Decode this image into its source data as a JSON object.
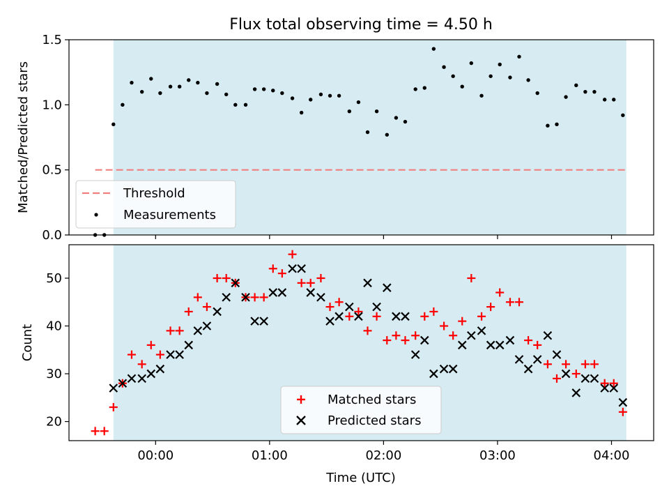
{
  "chart_data": [
    {
      "type": "scatter",
      "title": "Flux total observing time = 4.50 h",
      "xlabel": "",
      "ylabel": "Matched/Predicted stars",
      "ylim": [
        0,
        1.5
      ],
      "xlim": [
        -0.76,
        4.37
      ],
      "yticks": [
        0.0,
        0.5,
        1.0,
        1.5
      ],
      "ytick_labels": [
        "0.0",
        "0.5",
        "1.0",
        "1.5"
      ],
      "shaded_span": [
        -0.37,
        4.13
      ],
      "shade_color": "#add8e6",
      "threshold": {
        "name": "Threshold",
        "value": 0.5,
        "x_range": [
          -0.53,
          4.12
        ],
        "color": "#f08080"
      },
      "legend": [
        "Threshold",
        "Measurements"
      ],
      "legend_position": "lower-left",
      "series": [
        {
          "name": "Measurements",
          "marker": "dot",
          "color": "#000000",
          "x": [
            -0.53,
            -0.45,
            -0.37,
            -0.29,
            -0.21,
            -0.12,
            -0.04,
            0.04,
            0.13,
            0.21,
            0.29,
            0.37,
            0.45,
            0.54,
            0.62,
            0.7,
            0.79,
            0.87,
            0.95,
            1.03,
            1.11,
            1.2,
            1.28,
            1.36,
            1.45,
            1.53,
            1.61,
            1.7,
            1.78,
            1.86,
            1.94,
            2.03,
            2.11,
            2.19,
            2.28,
            2.36,
            2.44,
            2.53,
            2.61,
            2.69,
            2.77,
            2.86,
            2.94,
            3.02,
            3.11,
            3.19,
            3.27,
            3.35,
            3.44,
            3.52,
            3.6,
            3.69,
            3.77,
            3.85,
            3.94,
            4.02,
            4.1
          ],
          "y": [
            0.0,
            0.0,
            0.85,
            1.0,
            1.17,
            1.1,
            1.2,
            1.09,
            1.14,
            1.14,
            1.19,
            1.17,
            1.09,
            1.16,
            1.08,
            1.0,
            1.0,
            1.12,
            1.12,
            1.11,
            1.09,
            1.05,
            0.94,
            1.04,
            1.08,
            1.07,
            1.07,
            0.95,
            1.02,
            0.79,
            0.95,
            0.77,
            0.9,
            0.87,
            1.12,
            1.13,
            1.43,
            1.29,
            1.22,
            1.14,
            1.32,
            1.07,
            1.22,
            1.31,
            1.21,
            1.37,
            1.19,
            1.09,
            0.84,
            0.85,
            1.06,
            1.15,
            1.1,
            1.1,
            1.04,
            1.04,
            0.92
          ]
        }
      ]
    },
    {
      "type": "scatter",
      "title": "",
      "xlabel": "Time (UTC)",
      "ylabel": "Count",
      "ylim": [
        16,
        57
      ],
      "xlim": [
        -0.76,
        4.37
      ],
      "yticks": [
        20,
        30,
        40,
        50
      ],
      "ytick_labels": [
        "20",
        "30",
        "40",
        "50"
      ],
      "xticks": [
        0,
        1,
        2,
        3,
        4
      ],
      "xtick_labels": [
        "00:00",
        "01:00",
        "02:00",
        "03:00",
        "04:00"
      ],
      "shaded_span": [
        -0.37,
        4.13
      ],
      "shade_color": "#add8e6",
      "legend": [
        "Matched stars",
        "Predicted stars"
      ],
      "legend_position": "lower-center",
      "series": [
        {
          "name": "Matched stars",
          "marker": "plus",
          "color": "#ff0000",
          "x": [
            -0.53,
            -0.45,
            -0.37,
            -0.29,
            -0.21,
            -0.12,
            -0.04,
            0.04,
            0.13,
            0.21,
            0.29,
            0.37,
            0.45,
            0.54,
            0.62,
            0.7,
            0.79,
            0.87,
            0.95,
            1.03,
            1.11,
            1.2,
            1.28,
            1.36,
            1.45,
            1.53,
            1.61,
            1.7,
            1.78,
            1.86,
            1.94,
            2.03,
            2.11,
            2.19,
            2.28,
            2.36,
            2.44,
            2.53,
            2.61,
            2.69,
            2.77,
            2.86,
            2.94,
            3.02,
            3.11,
            3.19,
            3.27,
            3.35,
            3.44,
            3.52,
            3.6,
            3.69,
            3.77,
            3.85,
            3.94,
            4.02,
            4.1
          ],
          "y": [
            18,
            18,
            23,
            28,
            34,
            32,
            36,
            34,
            39,
            39,
            43,
            46,
            44,
            50,
            50,
            49,
            46,
            46,
            46,
            52,
            51,
            55,
            49,
            49,
            50,
            44,
            45,
            42,
            43,
            39,
            42,
            37,
            38,
            37,
            38,
            42,
            43,
            40,
            38,
            41,
            50,
            42,
            44,
            47,
            45,
            45,
            37,
            36,
            32,
            29,
            32,
            30,
            32,
            32,
            28,
            28,
            22
          ]
        },
        {
          "name": "Predicted stars",
          "marker": "x",
          "color": "#000000",
          "x": [
            -0.37,
            -0.29,
            -0.21,
            -0.12,
            -0.04,
            0.04,
            0.13,
            0.21,
            0.29,
            0.37,
            0.45,
            0.54,
            0.62,
            0.7,
            0.79,
            0.87,
            0.95,
            1.03,
            1.11,
            1.2,
            1.28,
            1.36,
            1.45,
            1.53,
            1.61,
            1.7,
            1.78,
            1.86,
            1.94,
            2.03,
            2.11,
            2.19,
            2.28,
            2.36,
            2.44,
            2.53,
            2.61,
            2.69,
            2.77,
            2.86,
            2.94,
            3.02,
            3.11,
            3.19,
            3.27,
            3.35,
            3.44,
            3.52,
            3.6,
            3.69,
            3.77,
            3.85,
            3.94,
            4.02,
            4.1
          ],
          "y": [
            27,
            28,
            29,
            29,
            30,
            31,
            34,
            34,
            36,
            39,
            40,
            43,
            46,
            49,
            46,
            41,
            41,
            47,
            47,
            52,
            52,
            47,
            46,
            41,
            42,
            44,
            42,
            49,
            44,
            48,
            42,
            42,
            34,
            37,
            30,
            31,
            31,
            36,
            38,
            39,
            36,
            36,
            37,
            33,
            31,
            33,
            38,
            34,
            30,
            26,
            29,
            29,
            27,
            27,
            24
          ]
        }
      ]
    }
  ]
}
